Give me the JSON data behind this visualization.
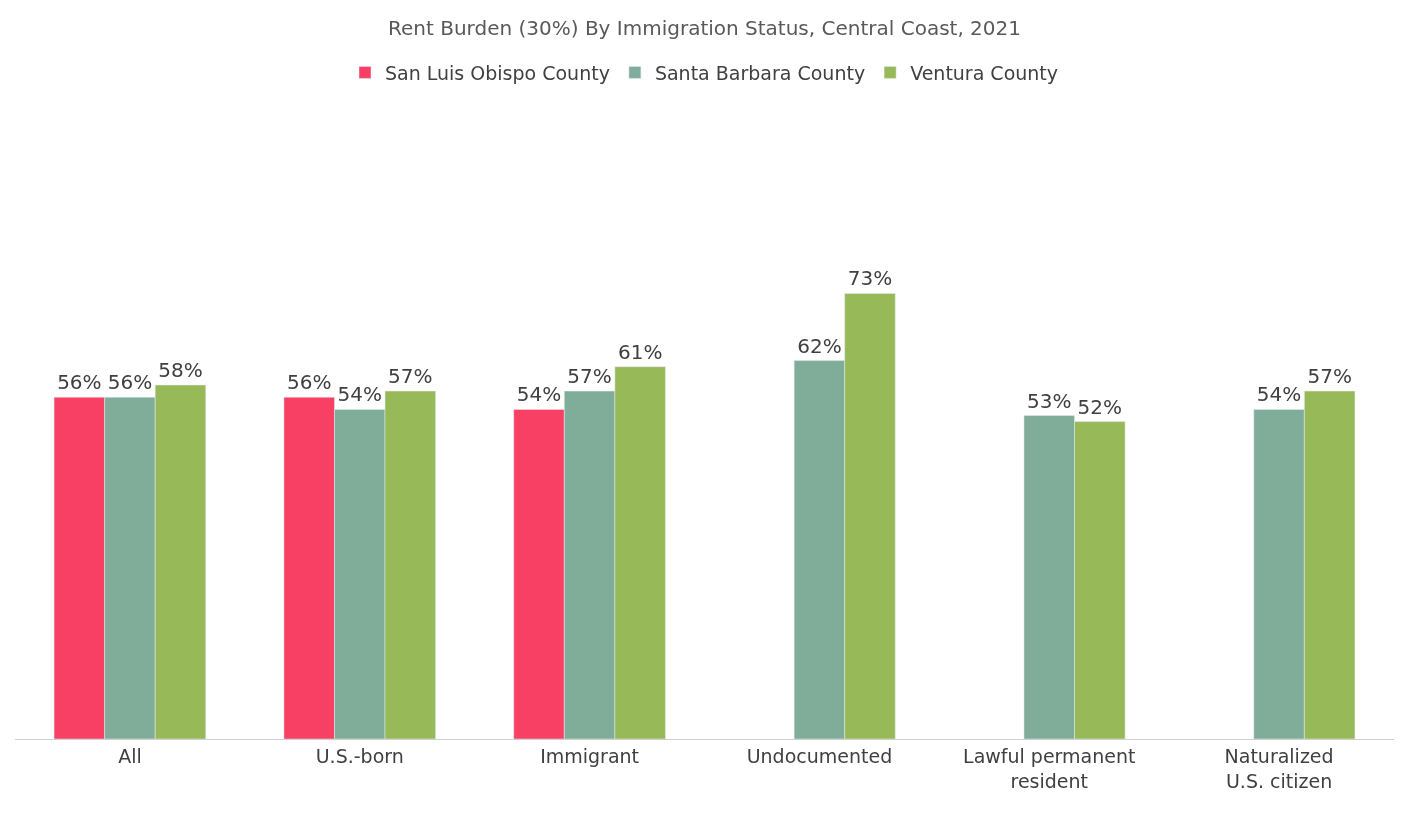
{
  "chart_data": {
    "type": "bar",
    "title": "Rent Burden (30%) By Immigration Status, Central Coast, 2021",
    "categories": [
      "All",
      "U.S.-born",
      "Immigrant",
      "Undocumented",
      "Lawful permanent resident",
      "Naturalized U.S. citizen"
    ],
    "series": [
      {
        "name": "San Luis Obispo County",
        "color": "#f83f64",
        "values": [
          56,
          56,
          54,
          null,
          null,
          null
        ],
        "value_labels": [
          "56%",
          "56%",
          "54%",
          null,
          null,
          null
        ]
      },
      {
        "name": "Santa Barbara County",
        "color": "#80ad99",
        "values": [
          56,
          54,
          57,
          62,
          53,
          54
        ],
        "value_labels": [
          "56%",
          "54%",
          "57%",
          "62%",
          "53%",
          "54%"
        ]
      },
      {
        "name": "Ventura County",
        "color": "#98b958",
        "values": [
          58,
          57,
          61,
          73,
          52,
          57
        ],
        "value_labels": [
          "58%",
          "57%",
          "61%",
          "73%",
          "52%",
          "57%"
        ]
      }
    ],
    "legend": "top"
  }
}
